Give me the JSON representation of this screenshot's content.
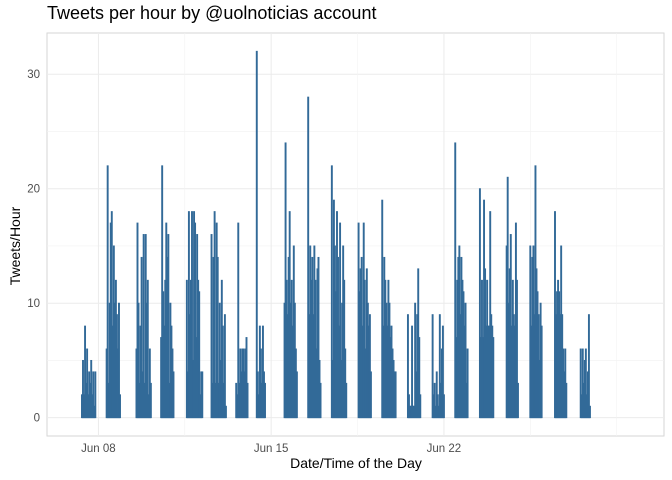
{
  "chart_data": {
    "type": "bar",
    "title": "Tweets per hour by @uolnoticias account",
    "xlabel": "Date/Time of the Day",
    "ylabel": "Tweets/Hour",
    "ylim": [
      -1.6,
      33.6
    ],
    "xlim": [
      "2020-06-05T22:00",
      "2020-06-30T22:00"
    ],
    "y_ticks": [
      0,
      10,
      20,
      30
    ],
    "x_ticks": [
      {
        "date": "2020-06-08T00:00",
        "label": "Jun 08"
      },
      {
        "date": "2020-06-15T00:00",
        "label": "Jun 15"
      },
      {
        "date": "2020-06-22T00:00",
        "label": "Jun 22"
      }
    ],
    "grid": true,
    "bar_color": "#336a98",
    "series": [
      {
        "start_hour": "2020-06-07T08:00",
        "hour_step": 1,
        "values": [
          2,
          5,
          2,
          8,
          3,
          6,
          2,
          4,
          3,
          5,
          2,
          4,
          1,
          4,
          0,
          0,
          0,
          0,
          0,
          0,
          0,
          0,
          0,
          0,
          6,
          22,
          3,
          10,
          17,
          18,
          8,
          15,
          10,
          12,
          9,
          6,
          10,
          2,
          0,
          0,
          0,
          0,
          0,
          0,
          0,
          0,
          0,
          0,
          0,
          0,
          0,
          0,
          0,
          6,
          17,
          10,
          3,
          8,
          14,
          4,
          16,
          3,
          16,
          10,
          12,
          2,
          6,
          3,
          0,
          0,
          0,
          0,
          0,
          0,
          0,
          0,
          0,
          7,
          22,
          11,
          8,
          12,
          17,
          14,
          16,
          3,
          10,
          8,
          6,
          4,
          0,
          0,
          0,
          0,
          0,
          0,
          0,
          0,
          0,
          0,
          0,
          0,
          12,
          4,
          18,
          9,
          12,
          18,
          5,
          18,
          17,
          7,
          16,
          12,
          11,
          2,
          4,
          4,
          0,
          0,
          0,
          0,
          0,
          0,
          0,
          0,
          16,
          3,
          14,
          18,
          3,
          17,
          14,
          3,
          10,
          5,
          12,
          8,
          3,
          9,
          1,
          0,
          0,
          0,
          0,
          0,
          0,
          0,
          0,
          0,
          3,
          2,
          17,
          3,
          6,
          4,
          6,
          6,
          4,
          6,
          7,
          3,
          0,
          0,
          0,
          0,
          0,
          0,
          0,
          0,
          32,
          4,
          2,
          8,
          6,
          3,
          8,
          4,
          3,
          0,
          0,
          0,
          0,
          0,
          0,
          0,
          0,
          0,
          0,
          0,
          0,
          0,
          0,
          0,
          0,
          0,
          0,
          10,
          24,
          12,
          9,
          14,
          18,
          10,
          12,
          8,
          15,
          10,
          6,
          4,
          0,
          0,
          0,
          0,
          0,
          0,
          0,
          0,
          0,
          0,
          28,
          9,
          15,
          12,
          14,
          9,
          15,
          12,
          6,
          13,
          14,
          5,
          3,
          0,
          0,
          0,
          0,
          0,
          0,
          0,
          0,
          0,
          0,
          22,
          5,
          19,
          15,
          11,
          18,
          14,
          8,
          17,
          5,
          10,
          15,
          12,
          6,
          3,
          0,
          0,
          0,
          0,
          0,
          0,
          0,
          0,
          0,
          0,
          0,
          17,
          11,
          13,
          14,
          8,
          17,
          12,
          6,
          13,
          10,
          8,
          9,
          4,
          0,
          0,
          0,
          0,
          0,
          0,
          0,
          0,
          0,
          0,
          19,
          8,
          14,
          12,
          10,
          8,
          12,
          10,
          7,
          8,
          6,
          5,
          4,
          4,
          0,
          0,
          0,
          0,
          0,
          0,
          0,
          0,
          0,
          0,
          0,
          9,
          2,
          1,
          1,
          8,
          1,
          1,
          10,
          4,
          9,
          13,
          7,
          2,
          0,
          0,
          0,
          0,
          0,
          0,
          0,
          0,
          0,
          0,
          0,
          9,
          2,
          3,
          1,
          4,
          2,
          1,
          9,
          3,
          6,
          8,
          2,
          0,
          0,
          0,
          0,
          0,
          0,
          0,
          0,
          0,
          0,
          24,
          7,
          12,
          14,
          15,
          9,
          14,
          12,
          11,
          8,
          10,
          3,
          6,
          0,
          0,
          0,
          0,
          0,
          0,
          0,
          0,
          0,
          0,
          0,
          20,
          7,
          12,
          7,
          19,
          13,
          8,
          12,
          8,
          8,
          18,
          9,
          8,
          7,
          0,
          0,
          0,
          0,
          0,
          0,
          0,
          0,
          0,
          0,
          0,
          0,
          15,
          21,
          10,
          13,
          16,
          8,
          12,
          9,
          8,
          17,
          12,
          3,
          0,
          0,
          0,
          0,
          0,
          0,
          0,
          0,
          0,
          0,
          0,
          15,
          8,
          14,
          15,
          9,
          22,
          13,
          11,
          9,
          5,
          10,
          8,
          0,
          0,
          0,
          0,
          0,
          0,
          0,
          0,
          0,
          0,
          0,
          0,
          18,
          9,
          11,
          12,
          11,
          9,
          15,
          9,
          6,
          4,
          6,
          3,
          0,
          0,
          0,
          0,
          0,
          0,
          0,
          0,
          0,
          0,
          0,
          0,
          0,
          6,
          2,
          6,
          3,
          5,
          6,
          2,
          4,
          9,
          1,
          0,
          0,
          0,
          0,
          0,
          0,
          0,
          0,
          0
        ]
      }
    ]
  }
}
